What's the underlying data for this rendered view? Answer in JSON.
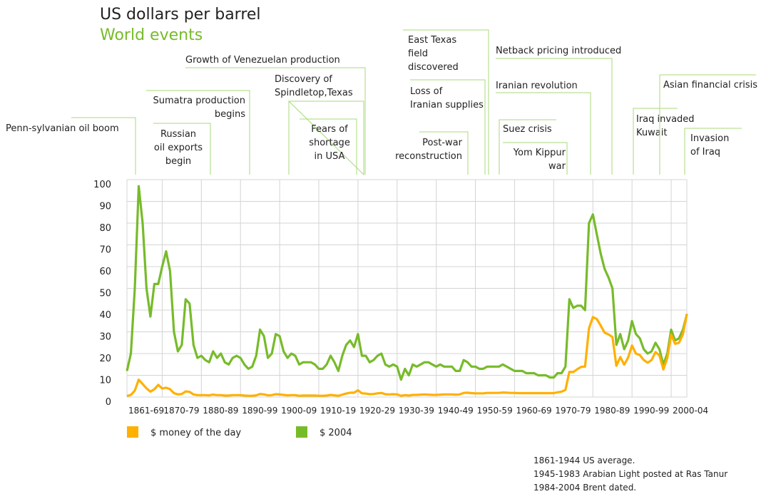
{
  "chart_data": {
    "type": "line",
    "title": "US dollars per barrel",
    "subtitle": "World events",
    "annotations": [
      [
        "Penn-sylvanian oil boom"
      ],
      [
        "Russian",
        "oil exports",
        "begin"
      ],
      [
        "Sumatra production",
        "begins"
      ],
      [
        "Growth of Venezuelan production"
      ],
      [
        "Discovery of",
        "Spindletop,Texas"
      ],
      [
        "Fears of",
        "shortage",
        "in USA"
      ],
      [
        "East Texas",
        "field",
        "discovered"
      ],
      [
        "Loss of",
        "Iranian supplies"
      ],
      [
        "Post-war",
        "reconstruction"
      ],
      [
        "Netback pricing introduced"
      ],
      [
        "Iranian revolution"
      ],
      [
        "Suez crisis"
      ],
      [
        "Yom Kippur",
        "war"
      ],
      [
        "Iraq invaded",
        "Kuwait"
      ],
      [
        "Asian financial crisis"
      ],
      [
        "Invasion",
        "of Iraq"
      ]
    ],
    "notes": [
      "1861-1944 US average.",
      "1945-1983 Arabian Light posted at Ras Tanur",
      "1984-2004 Brent dated."
    ],
    "x": [
      1861,
      1862,
      1863,
      1864,
      1865,
      1866,
      1867,
      1868,
      1869,
      1870,
      1871,
      1872,
      1873,
      1874,
      1875,
      1876,
      1877,
      1878,
      1879,
      1880,
      1881,
      1882,
      1883,
      1884,
      1885,
      1886,
      1887,
      1888,
      1889,
      1890,
      1891,
      1892,
      1893,
      1894,
      1895,
      1896,
      1897,
      1898,
      1899,
      1900,
      1901,
      1902,
      1903,
      1904,
      1905,
      1906,
      1907,
      1908,
      1909,
      1910,
      1911,
      1912,
      1913,
      1914,
      1915,
      1916,
      1917,
      1918,
      1919,
      1920,
      1921,
      1922,
      1923,
      1924,
      1925,
      1926,
      1927,
      1928,
      1929,
      1930,
      1931,
      1932,
      1933,
      1934,
      1935,
      1936,
      1937,
      1938,
      1939,
      1940,
      1941,
      1942,
      1943,
      1944,
      1945,
      1946,
      1947,
      1948,
      1949,
      1950,
      1951,
      1952,
      1953,
      1954,
      1955,
      1956,
      1957,
      1958,
      1959,
      1960,
      1961,
      1962,
      1963,
      1964,
      1965,
      1966,
      1967,
      1968,
      1969,
      1970,
      1971,
      1972,
      1973,
      1974,
      1975,
      1976,
      1977,
      1978,
      1979,
      1980,
      1981,
      1982,
      1983,
      1984,
      1985,
      1986,
      1987,
      1988,
      1989,
      1990,
      1991,
      1992,
      1993,
      1994,
      1995,
      1996,
      1997,
      1998,
      1999,
      2000,
      2001,
      2002,
      2003,
      2004
    ],
    "series": [
      {
        "name": "$ money of the day",
        "color": "#ffb000",
        "values": [
          0.5,
          1,
          3,
          8,
          6,
          4,
          2.5,
          3.6,
          5.6,
          3.9,
          4.3,
          3.6,
          1.8,
          1.2,
          1.4,
          2.6,
          2.4,
          1.2,
          0.9,
          0.9,
          0.9,
          0.8,
          1.1,
          0.9,
          0.9,
          0.7,
          0.7,
          0.9,
          0.9,
          0.9,
          0.7,
          0.6,
          0.6,
          0.8,
          1.4,
          1.2,
          0.8,
          0.9,
          1.3,
          1.2,
          1,
          0.8,
          0.9,
          0.9,
          0.6,
          0.7,
          0.7,
          0.7,
          0.7,
          0.6,
          0.6,
          0.7,
          1,
          0.8,
          0.6,
          1.1,
          1.6,
          2,
          2,
          3.1,
          1.7,
          1.6,
          1.3,
          1.4,
          1.7,
          1.9,
          1.3,
          1.2,
          1.3,
          1.2,
          0.6,
          0.9,
          0.7,
          1,
          1,
          1.1,
          1.2,
          1.1,
          1,
          1,
          1.1,
          1.2,
          1.2,
          1.2,
          1.1,
          1.2,
          1.9,
          2,
          1.8,
          1.7,
          1.7,
          1.7,
          1.9,
          1.9,
          1.9,
          1.9,
          2.1,
          2,
          1.9,
          1.9,
          1.8,
          1.8,
          1.8,
          1.8,
          1.8,
          1.8,
          1.8,
          1.8,
          1.8,
          1.8,
          2.2,
          2.5,
          3.3,
          11.6,
          11.5,
          12.8,
          13.9,
          14,
          31.6,
          36.8,
          35.9,
          32.9,
          29.6,
          28.8,
          27.6,
          14.4,
          18.4,
          14.9,
          18.2,
          23.7,
          20,
          19.3,
          17,
          15.8,
          17,
          20.7,
          19.1,
          12.7,
          17.9,
          28.7,
          24.5,
          25,
          28.8,
          38.3
        ]
      },
      {
        "name": "$ 2004",
        "color": "#77bb2a",
        "values": [
          12,
          20,
          50,
          97,
          80,
          50,
          37,
          52,
          52,
          60,
          67,
          58,
          30,
          21,
          24,
          45,
          43,
          24,
          18,
          19,
          17,
          16,
          21,
          18,
          20,
          16,
          15,
          18,
          19,
          18,
          15,
          13,
          14,
          19,
          31,
          28,
          18,
          20,
          29,
          28,
          21,
          18,
          20,
          19,
          15,
          16,
          16,
          16,
          15,
          13,
          13,
          15,
          19,
          16,
          12,
          19,
          24,
          26,
          23,
          29,
          19,
          19,
          16,
          17,
          19,
          20,
          15,
          14,
          15,
          14,
          8,
          13,
          10,
          15,
          14,
          15,
          16,
          16,
          15,
          14,
          15,
          14,
          14,
          14,
          12,
          12,
          17,
          16,
          14,
          14,
          13,
          13,
          14,
          14,
          14,
          14,
          15,
          14,
          13,
          12,
          12,
          12,
          11,
          11,
          11,
          10,
          10,
          10,
          9,
          9,
          11,
          11,
          14,
          45,
          41,
          42,
          42,
          40,
          80,
          84,
          75,
          66,
          59,
          55,
          50,
          24,
          29,
          22,
          26,
          35,
          29,
          27,
          22,
          20,
          21,
          25,
          22,
          15,
          20,
          31,
          26,
          27,
          31,
          38
        ]
      }
    ],
    "xlim": [
      1861,
      2004
    ],
    "xticks": [
      {
        "value": 1861,
        "label": "1861-69"
      },
      {
        "value": 1870,
        "label": "1870-79"
      },
      {
        "value": 1880,
        "label": "1880-89"
      },
      {
        "value": 1890,
        "label": "1890-99"
      },
      {
        "value": 1900,
        "label": "1900-09"
      },
      {
        "value": 1910,
        "label": "1910-19"
      },
      {
        "value": 1920,
        "label": "1920-29"
      },
      {
        "value": 1930,
        "label": "1930-39"
      },
      {
        "value": 1940,
        "label": "1940-49"
      },
      {
        "value": 1950,
        "label": "1950-59"
      },
      {
        "value": 1960,
        "label": "1960-69"
      },
      {
        "value": 1970,
        "label": "1970-79"
      },
      {
        "value": 1980,
        "label": "1980-89"
      },
      {
        "value": 1990,
        "label": "1990-99"
      },
      {
        "value": 2000,
        "label": "2000-04"
      }
    ],
    "ylim": [
      0,
      100
    ],
    "yticks": [
      0,
      10,
      20,
      30,
      40,
      50,
      60,
      70,
      80,
      90,
      100
    ],
    "grid": true
  }
}
